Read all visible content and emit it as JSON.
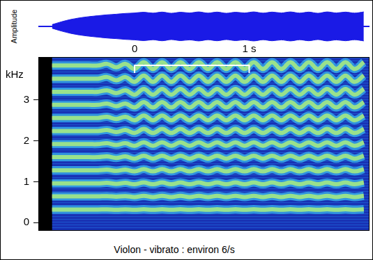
{
  "chart_data": {
    "type": "line",
    "title": "Violon - vibrato : environ 6/s",
    "y_label": "kHz",
    "xlim": [
      -0.84,
      2.05
    ],
    "xticks": [
      0,
      {
        "value": 1,
        "label": "1 s"
      }
    ],
    "ylim": [
      -0.2,
      4.05
    ],
    "yticks": [
      0,
      1,
      2,
      3
    ],
    "grid": false,
    "bracket": [
      0,
      1
    ],
    "x": [
      -0.72,
      -0.64,
      -0.56,
      -0.48,
      -0.4,
      -0.32,
      -0.24,
      -0.16,
      -0.08,
      0,
      0.08,
      0.16,
      0.24,
      0.32,
      0.4,
      0.48,
      0.56,
      0.64,
      0.72,
      0.8,
      0.88,
      0.96,
      1.04,
      1.12,
      1.2,
      1.28,
      1.36,
      1.44,
      1.52,
      1.6,
      1.68,
      1.76,
      1.84,
      1.92,
      2
    ],
    "amplitude": {
      "label": "Amplitude",
      "ylim": [
        0,
        1
      ],
      "values": [
        0.12,
        0.3,
        0.45,
        0.56,
        0.64,
        0.7,
        0.76,
        0.8,
        0.85,
        0.88,
        0.93,
        0.87,
        0.94,
        0.86,
        0.93,
        0.88,
        0.95,
        0.87,
        0.94,
        0.86,
        0.93,
        0.88,
        0.95,
        0.87,
        0.94,
        0.88,
        0.95,
        0.87,
        0.94,
        0.86,
        0.95,
        0.88,
        0.94,
        0.87,
        0.95
      ]
    },
    "series": [
      {
        "color": "#8b0a0a",
        "values": [
          0.32,
          0.32,
          0.32,
          0.32,
          0.32,
          0.32,
          0.324,
          0.316,
          0.324,
          0.313,
          0.327,
          0.313,
          0.327,
          0.313,
          0.327,
          0.313,
          0.327,
          0.313,
          0.327,
          0.313,
          0.327,
          0.313,
          0.327,
          0.313,
          0.327,
          0.313,
          0.327,
          0.313,
          0.327,
          0.313,
          0.327,
          0.313,
          0.327,
          0.313,
          0.327
        ]
      },
      {
        "color": "#8b0a0a",
        "values": [
          0.64,
          0.64,
          0.64,
          0.64,
          0.64,
          0.64,
          0.647,
          0.633,
          0.647,
          0.626,
          0.654,
          0.626,
          0.654,
          0.626,
          0.654,
          0.626,
          0.654,
          0.626,
          0.654,
          0.626,
          0.654,
          0.626,
          0.654,
          0.626,
          0.654,
          0.626,
          0.654,
          0.626,
          0.654,
          0.626,
          0.654,
          0.626,
          0.654,
          0.626,
          0.654
        ]
      },
      {
        "color": "#8b0a0a",
        "values": [
          0.96,
          0.96,
          0.96,
          0.96,
          0.96,
          0.96,
          0.971,
          0.949,
          0.971,
          0.939,
          0.981,
          0.939,
          0.981,
          0.939,
          0.981,
          0.939,
          0.981,
          0.939,
          0.981,
          0.939,
          0.981,
          0.939,
          0.981,
          0.939,
          0.981,
          0.939,
          0.981,
          0.939,
          0.981,
          0.939,
          0.981,
          0.939,
          0.981,
          0.939,
          0.981
        ]
      },
      {
        "color": "#c00000",
        "values": [
          1.28,
          1.28,
          1.28,
          1.28,
          1.28,
          1.28,
          1.294,
          1.266,
          1.294,
          1.252,
          1.308,
          1.252,
          1.308,
          1.252,
          1.308,
          1.252,
          1.308,
          1.252,
          1.308,
          1.252,
          1.308,
          1.252,
          1.308,
          1.252,
          1.308,
          1.252,
          1.308,
          1.252,
          1.308,
          1.252,
          1.308,
          1.252,
          1.308,
          1.252,
          1.308
        ]
      },
      {
        "color": "#c00000",
        "values": [
          1.6,
          1.6,
          1.6,
          1.6,
          1.6,
          1.6,
          1.618,
          1.582,
          1.618,
          1.565,
          1.635,
          1.565,
          1.635,
          1.565,
          1.635,
          1.565,
          1.635,
          1.565,
          1.635,
          1.565,
          1.635,
          1.565,
          1.635,
          1.565,
          1.635,
          1.565,
          1.635,
          1.565,
          1.635,
          1.565,
          1.635,
          1.565,
          1.635,
          1.565,
          1.635
        ]
      },
      {
        "color": "#c00000",
        "values": [
          1.92,
          1.92,
          1.92,
          1.92,
          1.92,
          1.92,
          1.941,
          1.899,
          1.941,
          1.878,
          1.962,
          1.878,
          1.962,
          1.878,
          1.962,
          1.878,
          1.962,
          1.878,
          1.962,
          1.878,
          1.962,
          1.878,
          1.962,
          1.878,
          1.962,
          1.878,
          1.962,
          1.878,
          1.962,
          1.878,
          1.962,
          1.878,
          1.962,
          1.878,
          1.962
        ]
      },
      {
        "color": "#e8200a",
        "values": [
          2.24,
          2.24,
          2.24,
          2.24,
          2.24,
          2.24,
          2.265,
          2.215,
          2.265,
          2.191,
          2.289,
          2.191,
          2.289,
          2.191,
          2.289,
          2.191,
          2.289,
          2.191,
          2.289,
          2.191,
          2.289,
          2.191,
          2.289,
          2.191,
          2.289,
          2.191,
          2.289,
          2.191,
          2.289,
          2.191,
          2.289,
          2.191,
          2.289,
          2.191,
          2.289
        ]
      },
      {
        "color": "#e8200a",
        "values": [
          2.56,
          2.56,
          2.56,
          2.56,
          2.56,
          2.56,
          2.588,
          2.532,
          2.588,
          2.504,
          2.616,
          2.504,
          2.616,
          2.504,
          2.616,
          2.504,
          2.616,
          2.504,
          2.616,
          2.504,
          2.616,
          2.504,
          2.616,
          2.504,
          2.616,
          2.504,
          2.616,
          2.504,
          2.616,
          2.504,
          2.616,
          2.504,
          2.616,
          2.504,
          2.616
        ]
      },
      {
        "color": "#e8200a",
        "values": [
          2.88,
          2.88,
          2.88,
          2.88,
          2.88,
          2.88,
          2.912,
          2.848,
          2.912,
          2.817,
          2.943,
          2.817,
          2.943,
          2.817,
          2.943,
          2.817,
          2.943,
          2.817,
          2.943,
          2.817,
          2.943,
          2.817,
          2.943,
          2.817,
          2.943,
          2.817,
          2.943,
          2.817,
          2.943,
          2.817,
          2.943,
          2.817,
          2.943,
          2.817,
          2.943
        ]
      },
      {
        "color": "#e8200a",
        "values": [
          3.2,
          3.2,
          3.2,
          3.2,
          3.2,
          3.2,
          3.235,
          3.165,
          3.235,
          3.13,
          3.27,
          3.13,
          3.27,
          3.13,
          3.27,
          3.13,
          3.27,
          3.13,
          3.27,
          3.13,
          3.27,
          3.13,
          3.27,
          3.13,
          3.27,
          3.13,
          3.27,
          3.13,
          3.27,
          3.13,
          3.27,
          3.13,
          3.27,
          3.13,
          3.27
        ]
      },
      {
        "color": "#e8200a",
        "values": [
          3.52,
          3.52,
          3.52,
          3.52,
          3.52,
          3.52,
          3.559,
          3.481,
          3.559,
          3.443,
          3.597,
          3.443,
          3.597,
          3.443,
          3.597,
          3.443,
          3.597,
          3.443,
          3.597,
          3.443,
          3.597,
          3.443,
          3.597,
          3.443,
          3.597,
          3.443,
          3.597,
          3.443,
          3.597,
          3.443,
          3.597,
          3.443,
          3.597,
          3.443,
          3.597
        ]
      },
      {
        "color": "#e8200a",
        "values": [
          3.84,
          3.84,
          3.84,
          3.84,
          3.84,
          3.84,
          3.882,
          3.798,
          3.882,
          3.756,
          3.924,
          3.756,
          3.924,
          3.756,
          3.924,
          3.756,
          3.924,
          3.756,
          3.924,
          3.756,
          3.924,
          3.756,
          3.924,
          3.756,
          3.924,
          3.756,
          3.924,
          3.756,
          3.924,
          3.756,
          3.924,
          3.756,
          3.924,
          3.756,
          3.924
        ]
      }
    ]
  }
}
